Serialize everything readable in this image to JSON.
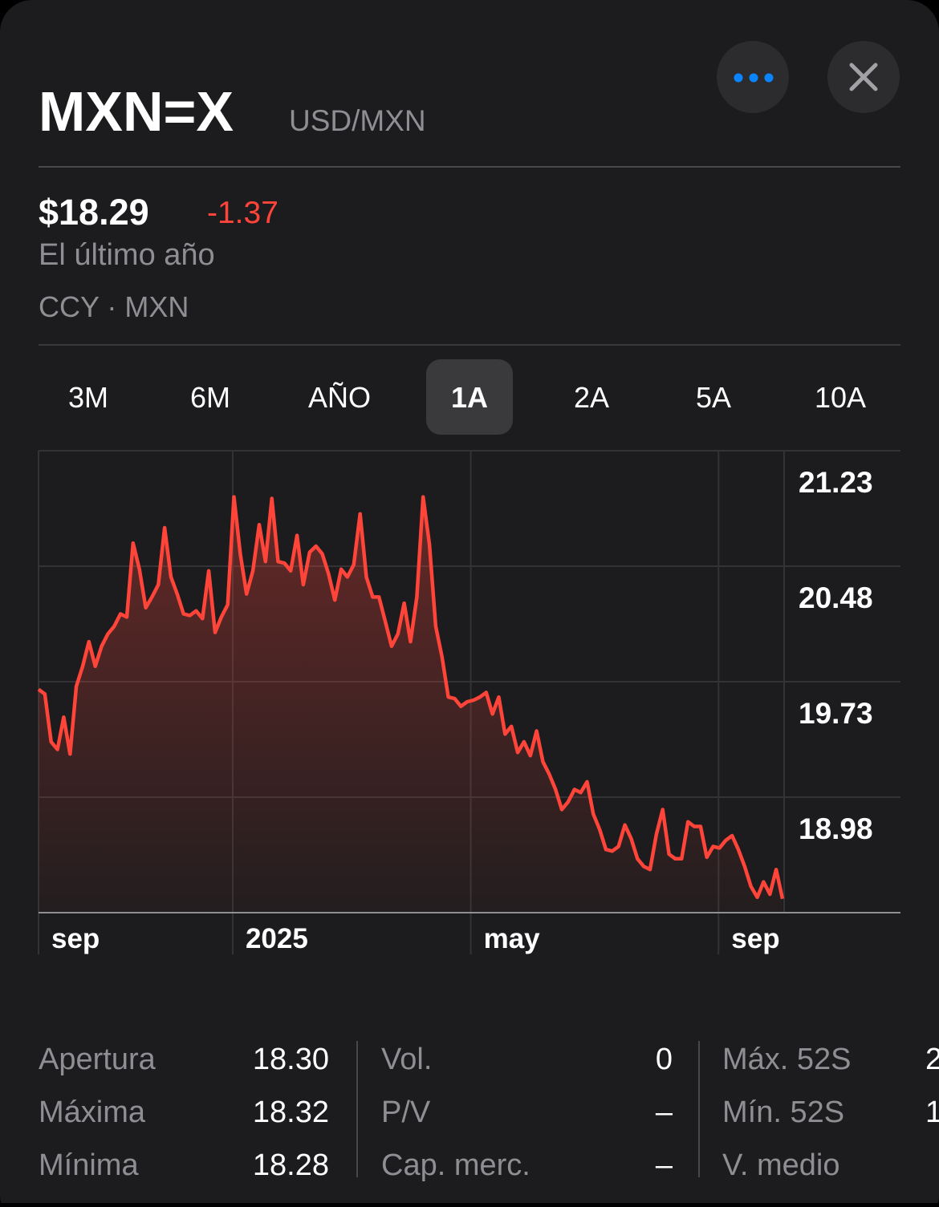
{
  "header": {
    "symbol": "MXN=X",
    "name": "USD/MXN"
  },
  "quote": {
    "price": "$18.29",
    "change": "-1.37",
    "period": "El último año",
    "exchange": "CCY · MXN"
  },
  "tabs": [
    "3M",
    "6M",
    "AÑO",
    "1A",
    "2A",
    "5A",
    "10A"
  ],
  "selected_tab": 3,
  "chart_data": {
    "type": "line",
    "color": "#ff453a",
    "xlabels": [
      "sep",
      "2025",
      "may",
      "sep"
    ],
    "values": [
      19.68,
      19.65,
      19.34,
      19.29,
      19.5,
      19.26,
      19.7,
      19.83,
      19.99,
      19.83,
      19.96,
      20.04,
      20.09,
      20.17,
      20.15,
      20.63,
      20.46,
      20.21,
      20.28,
      20.36,
      20.73,
      20.41,
      20.3,
      20.17,
      20.16,
      20.19,
      20.14,
      20.45,
      20.05,
      20.15,
      20.23,
      20.93,
      20.56,
      20.3,
      20.45,
      20.75,
      20.51,
      20.92,
      20.51,
      20.5,
      20.45,
      20.68,
      20.36,
      20.57,
      20.61,
      20.56,
      20.43,
      20.26,
      20.46,
      20.41,
      20.49,
      20.82,
      20.41,
      20.28,
      20.28,
      20.12,
      19.96,
      20.04,
      20.24,
      19.99,
      20.28,
      20.93,
      20.62,
      20.09,
      19.89,
      19.63,
      19.62,
      19.57,
      19.6,
      19.61,
      19.63,
      19.66,
      19.52,
      19.63,
      19.39,
      19.44,
      19.27,
      19.34,
      19.25,
      19.41,
      19.21,
      19.13,
      19.03,
      18.9,
      18.95,
      19.03,
      19.01,
      19.08,
      18.87,
      18.77,
      18.64,
      18.63,
      18.66,
      18.8,
      18.71,
      18.58,
      18.53,
      18.51,
      18.74,
      18.9,
      18.61,
      18.58,
      18.58,
      18.82,
      18.79,
      18.79,
      18.59,
      18.66,
      18.65,
      18.7,
      18.73,
      18.64,
      18.53,
      18.4,
      18.33,
      18.43,
      18.35,
      18.51,
      18.32
    ],
    "ylim": [
      18.23,
      21.23
    ],
    "yticks": [
      21.23,
      20.48,
      19.73,
      18.98
    ],
    "grid": true
  },
  "stats": {
    "rows": [
      [
        "Apertura",
        "18.30",
        "Vol.",
        "0",
        "Máx. 52S",
        "2"
      ],
      [
        "Máxima",
        "18.32",
        "P/V",
        "–",
        "Mín. 52S",
        "1"
      ],
      [
        "Mínima",
        "18.28",
        "Cap. merc.",
        "–",
        "V. medio"
      ]
    ]
  }
}
